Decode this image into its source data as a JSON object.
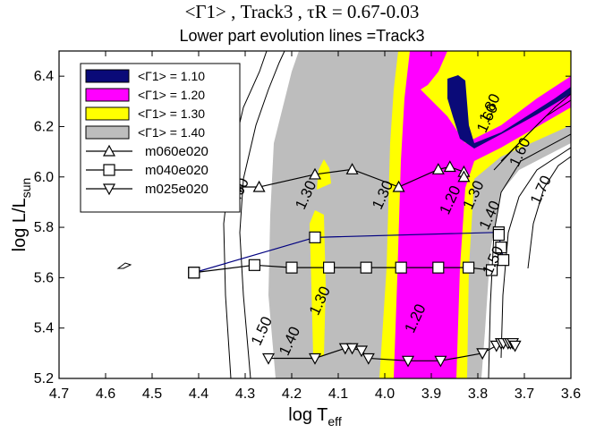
{
  "chart_data": {
    "type": "contour",
    "title": "<Γ1> , Track3 ,  τR = 0.67-0.03",
    "subtitle": "Lower part evolution lines =Track3",
    "xlabel": "log T_eff",
    "ylabel": "log L/L_sun",
    "xlim": [
      4.7,
      3.6
    ],
    "ylim": [
      5.2,
      6.5
    ],
    "x_reversed": true,
    "xticks": [
      "4.7",
      "4.6",
      "4.5",
      "4.4",
      "4.3",
      "4.2",
      "4.1",
      "4.0",
      "3.9",
      "3.8",
      "3.7",
      "3.6"
    ],
    "yticks": [
      "5.2",
      "5.4",
      "5.6",
      "5.8",
      "6.0",
      "6.2",
      "6.4"
    ],
    "legend_position": "top-left",
    "fill_legend": [
      {
        "label": "<Γ1> = 1.10",
        "color": "#0a0a78"
      },
      {
        "label": "<Γ1> = 1.20",
        "color": "#ff00ff"
      },
      {
        "label": "<Γ1> = 1.30",
        "color": "#ffff00"
      },
      {
        "label": "<Γ1> = 1.40",
        "color": "#bdbdbd"
      }
    ],
    "contour_labels": [
      {
        "text": "1.60",
        "x": 4.305,
        "y": 5.93
      },
      {
        "text": "1.30",
        "x": 4.16,
        "y": 5.92
      },
      {
        "text": "1.30",
        "x": 3.995,
        "y": 5.92
      },
      {
        "text": "1.20",
        "x": 3.85,
        "y": 5.9
      },
      {
        "text": "1.30",
        "x": 3.8,
        "y": 5.92
      },
      {
        "text": "1.30",
        "x": 4.13,
        "y": 5.5
      },
      {
        "text": "1.20",
        "x": 3.925,
        "y": 5.43
      },
      {
        "text": "1.40",
        "x": 4.195,
        "y": 5.34
      },
      {
        "text": "1.50",
        "x": 4.255,
        "y": 5.38
      },
      {
        "text": "1.40",
        "x": 3.765,
        "y": 5.84
      },
      {
        "text": "1.50",
        "x": 3.758,
        "y": 5.66
      },
      {
        "text": "1.60",
        "x": 3.7,
        "y": 6.09
      },
      {
        "text": "1.70",
        "x": 3.655,
        "y": 5.94
      },
      {
        "text": "1.60",
        "x": 3.77,
        "y": 6.225
      },
      {
        "text": "1.80",
        "x": 3.765,
        "y": 6.265
      }
    ],
    "series": [
      {
        "name": "m060e020",
        "marker": "triangle-up",
        "color": "#000000",
        "x": [
          4.47,
          4.43,
          4.37,
          4.32,
          4.27,
          4.15,
          4.07,
          3.97,
          3.885,
          3.86,
          3.83,
          3.83
        ],
        "y": [
          5.95,
          5.96,
          5.96,
          5.96,
          5.96,
          6.01,
          6.03,
          5.96,
          6.03,
          6.04,
          6.02,
          6.0
        ]
      },
      {
        "name": "m040e020",
        "marker": "square",
        "color": "#000000",
        "x": [
          4.41,
          4.28,
          4.2,
          4.12,
          4.04,
          3.965,
          3.885,
          3.82,
          3.77
        ],
        "y": [
          5.62,
          5.65,
          5.64,
          5.64,
          5.64,
          5.64,
          5.64,
          5.64,
          5.63
        ]
      },
      {
        "name": "m040e020 (blue track)",
        "marker": "square",
        "color": "#000080",
        "x": [
          4.41,
          4.15,
          3.755,
          3.755,
          3.75,
          3.745
        ],
        "y": [
          5.62,
          5.76,
          5.78,
          5.77,
          5.72,
          5.67
        ]
      },
      {
        "name": "m025e020",
        "marker": "triangle-down",
        "color": "#000000",
        "x": [
          4.25,
          4.15,
          4.085,
          4.07,
          4.05,
          4.035,
          3.95,
          3.88,
          3.79,
          3.76,
          3.75,
          3.745,
          3.735,
          3.73,
          3.725,
          3.72
        ],
        "y": [
          5.28,
          5.28,
          5.32,
          5.32,
          5.31,
          5.28,
          5.27,
          5.27,
          5.3,
          5.33,
          5.34,
          5.34,
          5.34,
          5.34,
          5.34,
          5.33
        ]
      }
    ]
  }
}
